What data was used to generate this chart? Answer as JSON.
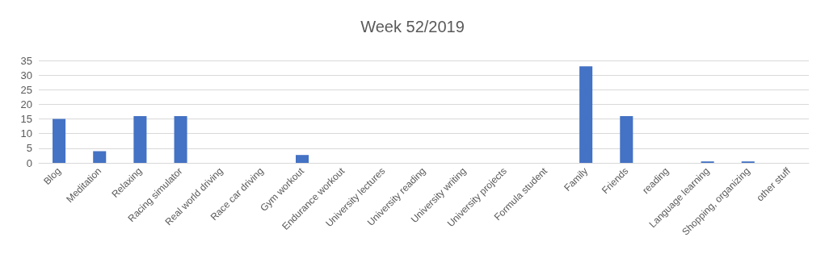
{
  "chart_data": {
    "type": "bar",
    "title": "Week 52/2019",
    "categories": [
      "Blog",
      "Meditation",
      "Relaxing",
      "Racing simulator",
      "Real world driving",
      "Race car driving",
      "Gym workout",
      "Endurance workout",
      "University lectures",
      "University reading",
      "University writing",
      "University projects",
      "Formula student",
      "Family",
      "Friends",
      "reading",
      "Language learning",
      "Shopping, organizing",
      "other stuff"
    ],
    "values": [
      15,
      4,
      16,
      16,
      0,
      0,
      2.7,
      0,
      0,
      0,
      0,
      0,
      0,
      33,
      16,
      0,
      0.5,
      0.5,
      0
    ],
    "color": "#4472c4",
    "ylim": [
      0,
      35
    ],
    "yticks": [
      0,
      5,
      10,
      15,
      20,
      25,
      30,
      35
    ],
    "grid": "y"
  }
}
